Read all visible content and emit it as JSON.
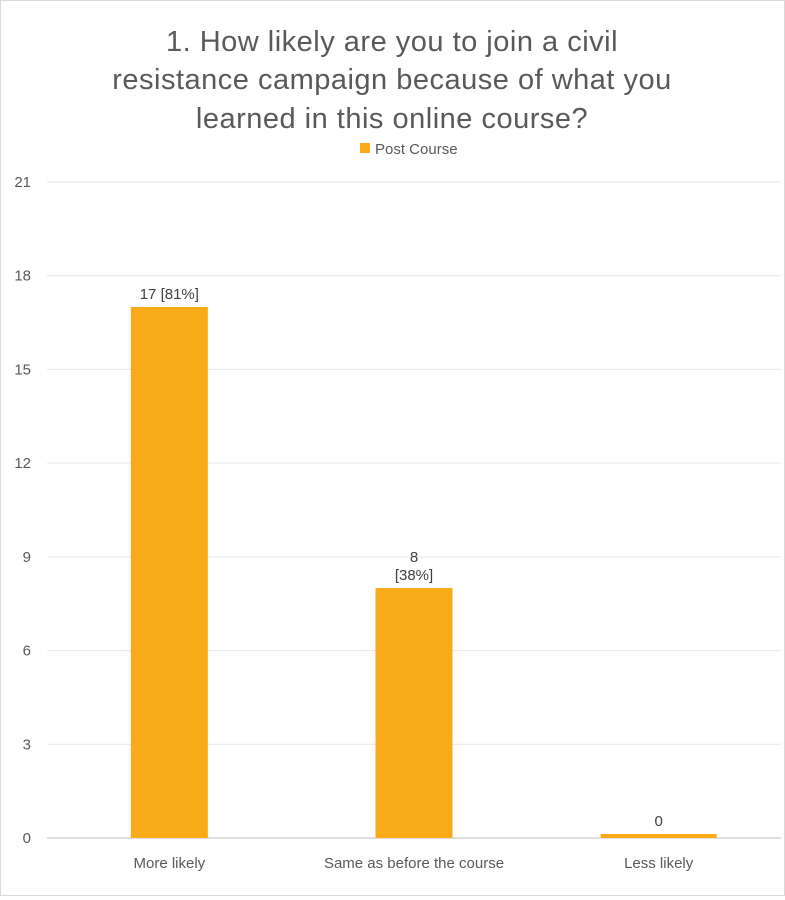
{
  "chart_data": {
    "type": "bar",
    "title_lines": [
      "1. How likely are you to join a civil",
      "resistance campaign because of what you",
      "learned in this online course?"
    ],
    "categories": [
      "More likely",
      "Same as before the course",
      "Less likely"
    ],
    "series": [
      {
        "name": "Post Course",
        "values": [
          17,
          8,
          0
        ],
        "data_labels": [
          [
            "17 [81%]"
          ],
          [
            "8",
            "[38%]"
          ],
          [
            "0"
          ]
        ]
      }
    ],
    "ylim": [
      0,
      21
    ],
    "yticks": [
      "0",
      "3",
      "6",
      "9",
      "12",
      "15",
      "18",
      "21"
    ],
    "grid": true,
    "legend_position": "top",
    "colors": {
      "bar": "#F9AA19",
      "grid": "#e6e6e6",
      "text": "#595959"
    }
  }
}
